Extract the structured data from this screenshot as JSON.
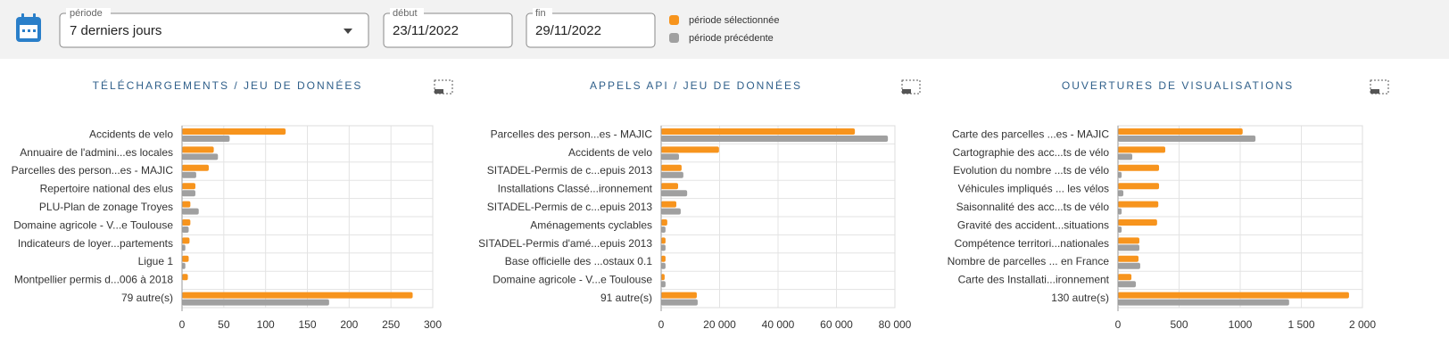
{
  "header": {
    "period_label": "période",
    "period_value": "7 derniers jours",
    "start_label": "début",
    "start_value": "23/11/2022",
    "end_label": "fin",
    "end_value": "29/11/2022"
  },
  "legend": [
    {
      "name": "période sélectionnée",
      "color": "#f7941d"
    },
    {
      "name": "période précédente",
      "color": "#a0a0a0"
    }
  ],
  "chart_data": [
    {
      "type": "hbar",
      "title": "TÉLÉCHARGEMENTS / JEU DE DONNÉES",
      "categories": [
        "Accidents de velo",
        "Annuaire de l'admini...es locales",
        "Parcelles des person...es - MAJIC",
        "Repertoire national des elus",
        "PLU-Plan de zonage Troyes",
        "Domaine agricole - V...e Toulouse",
        "Indicateurs de loyer...partements",
        "Ligue 1",
        "Montpellier permis d...006 à 2018",
        "79 autre(s)"
      ],
      "series": [
        {
          "color": "#f7941d",
          "values": [
            124,
            38,
            32,
            16,
            10,
            10,
            9,
            8,
            7,
            276
          ]
        },
        {
          "color": "#a0a0a0",
          "values": [
            57,
            43,
            17,
            16,
            20,
            8,
            4,
            4,
            0,
            176
          ]
        }
      ],
      "xlim": [
        0,
        300
      ],
      "xticks": [
        0,
        50,
        100,
        150,
        200,
        250,
        300
      ],
      "grid": true
    },
    {
      "type": "hbar",
      "title": "APPELS API / JEU DE DONNÉES",
      "categories": [
        "Parcelles des person...es - MAJIC",
        "Accidents de velo",
        "SITADEL-Permis de c...epuis 2013",
        "Installations Classé...ironnement",
        "SITADEL-Permis de c...epuis 2013",
        "Aménagements cyclables",
        "SITADEL-Permis d'amé...epuis 2013",
        "Base officielle des ...ostaux 0.1",
        "Domaine agricole - V...e Toulouse",
        "91 autre(s)"
      ],
      "series": [
        {
          "color": "#f7941d",
          "values": [
            66300,
            19800,
            7000,
            5800,
            5200,
            2100,
            1500,
            1500,
            1200,
            12200
          ]
        },
        {
          "color": "#a0a0a0",
          "values": [
            77600,
            6100,
            7600,
            8900,
            6700,
            1500,
            1500,
            1500,
            1500,
            12500
          ]
        }
      ],
      "xlim": [
        0,
        80000
      ],
      "xticks": [
        0,
        {
          "value": 20000,
          "label": "20 000"
        },
        {
          "value": 40000,
          "label": "40 000"
        },
        {
          "value": 60000,
          "label": "60 000"
        },
        {
          "value": 80000,
          "label": "80 000"
        }
      ],
      "grid": true
    },
    {
      "type": "hbar",
      "title": "OUVERTURES DE VISUALISATIONS",
      "categories": [
        "Carte des parcelles ...es - MAJIC",
        "Cartographie des acc...ts de vélo",
        "Evolution du nombre ...ts de vélo",
        "Véhicules impliqués ... les vélos",
        "Saisonnalité des acc...ts de vélo",
        "Gravité des accident...situations",
        "Compétence territori...nationales",
        "Nombre de parcelles ... en France",
        "Carte des Installati...ironnement",
        "130 autre(s)"
      ],
      "series": [
        {
          "color": "#f7941d",
          "values": [
            1020,
            387,
            336,
            336,
            330,
            320,
            175,
            168,
            110,
            1890
          ]
        },
        {
          "color": "#a0a0a0",
          "values": [
            1125,
            117,
            30,
            44,
            30,
            30,
            175,
            182,
            146,
            1400
          ]
        }
      ],
      "xlim": [
        0,
        2000
      ],
      "xticks": [
        0,
        500,
        1000,
        {
          "value": 1500,
          "label": "1 500"
        },
        {
          "value": 2000,
          "label": "2 000"
        }
      ],
      "grid": true
    }
  ]
}
